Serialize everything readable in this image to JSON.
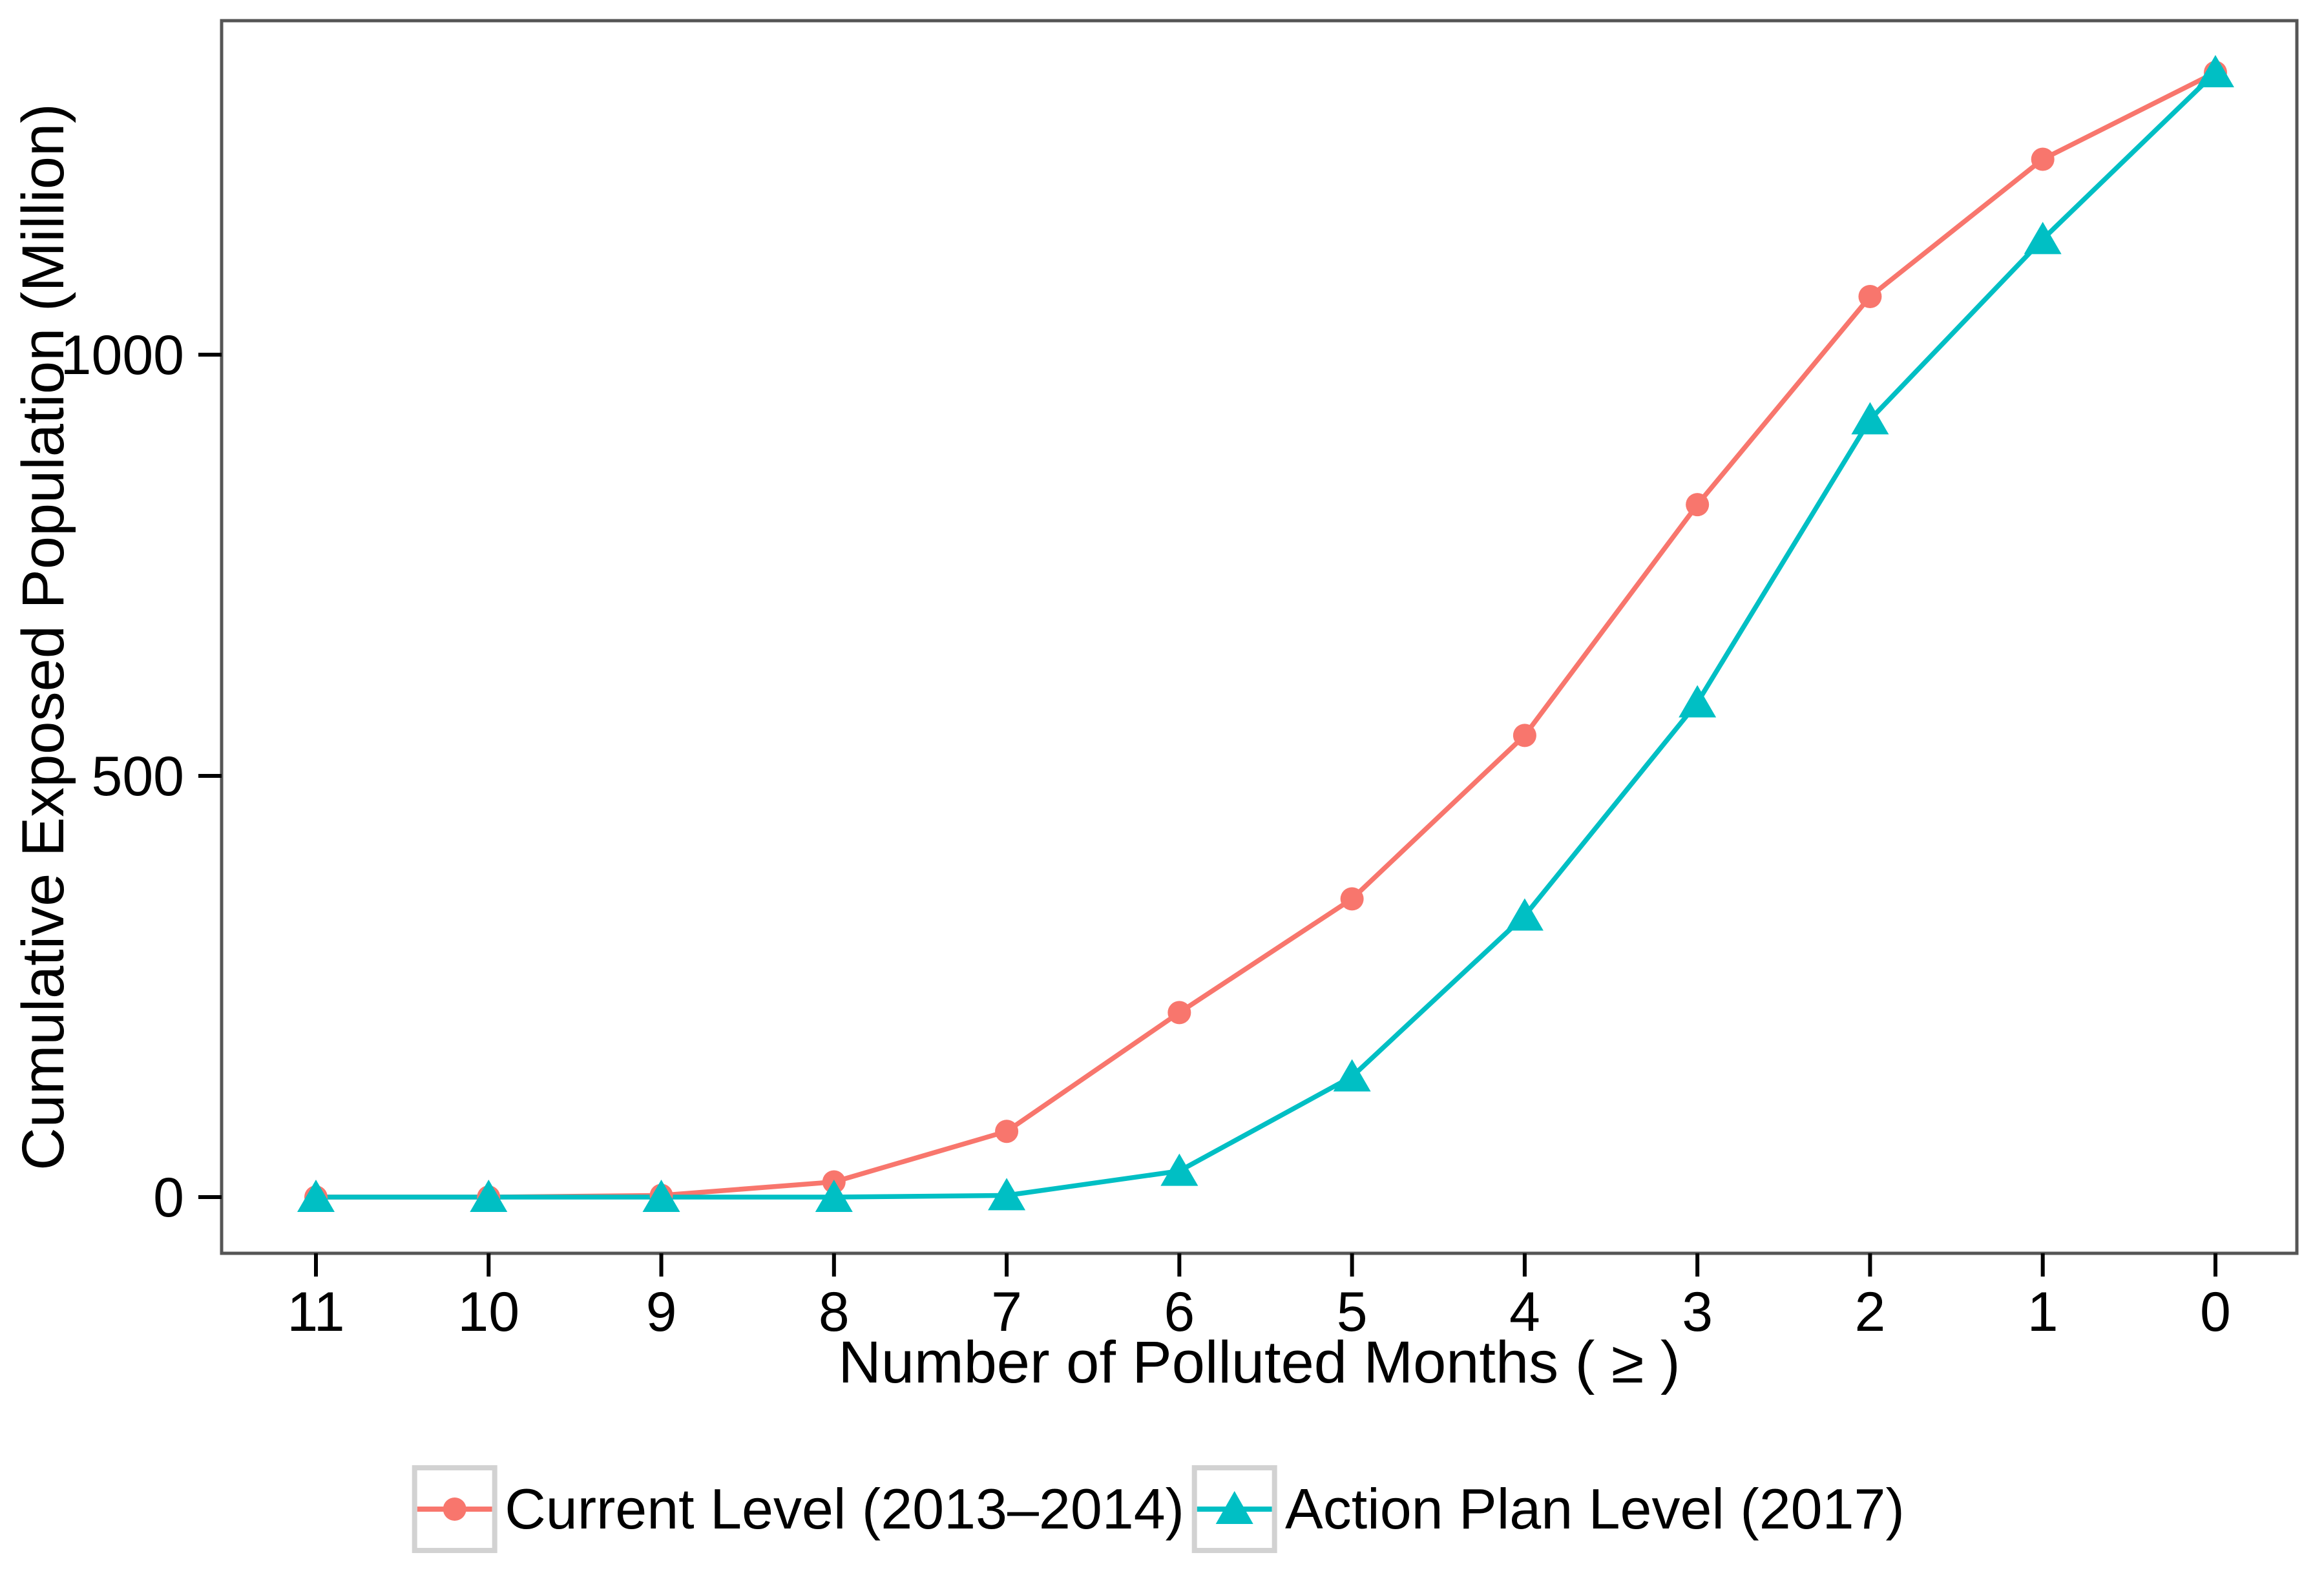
{
  "chart_data": {
    "type": "line",
    "title": "",
    "xlabel": "Number of Polluted Months ( ≥ )",
    "ylabel": "Cumulative Exposed Population (Million)",
    "categories": [
      "11",
      "10",
      "9",
      "8",
      "7",
      "6",
      "5",
      "4",
      "3",
      "2",
      "1",
      "0"
    ],
    "y_ticks": [
      {
        "value": 0,
        "label": "0"
      },
      {
        "value": 500,
        "label": "500"
      },
      {
        "value": 1000,
        "label": "1000"
      }
    ],
    "ylim": [
      -65,
      1400
    ],
    "grid": "off",
    "legend_position": "bottom",
    "series": [
      {
        "name": "Current Level (2013–2014)",
        "color": "#F8766D",
        "marker": "circle",
        "values": [
          0,
          0,
          2,
          18,
          78,
          219,
          354,
          548,
          822,
          1069,
          1232,
          1335
        ]
      },
      {
        "name": "Action Plan Level (2017)",
        "color": "#00BFC4",
        "marker": "triangle",
        "values": [
          0,
          0,
          0,
          0,
          2,
          31,
          143,
          334,
          587,
          923,
          1137,
          1335
        ]
      }
    ],
    "panel_border_color": "#555555",
    "tick_color": "#000000",
    "legend_key_border_color": "#d2d2d2"
  }
}
